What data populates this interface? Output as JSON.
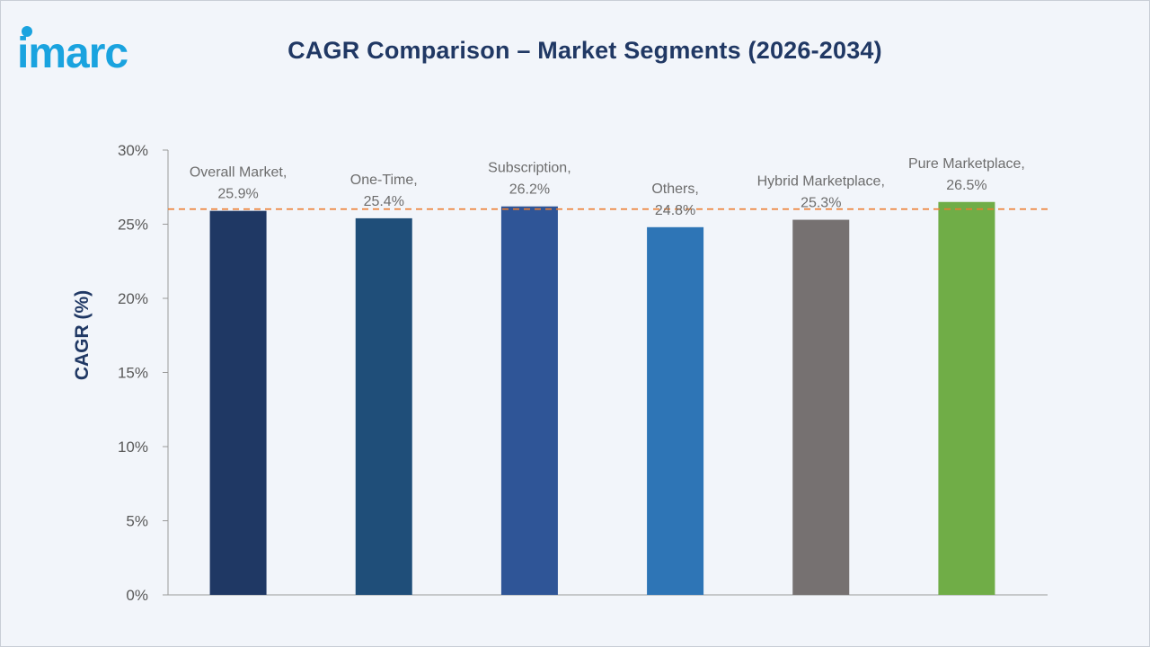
{
  "brand": {
    "name": "imarc",
    "color": "#1aa3df"
  },
  "title": "CAGR Comparison – Market Segments (2026-2034)",
  "chart_data": {
    "type": "bar",
    "title": "CAGR Comparison – Market Segments (2026-2034)",
    "xlabel": "",
    "ylabel": "CAGR (%)",
    "ylim": [
      0,
      30
    ],
    "yticks": [
      0,
      5,
      10,
      15,
      20,
      25,
      30
    ],
    "ytick_labels": [
      "0%",
      "5%",
      "10%",
      "15%",
      "20%",
      "25%",
      "30%"
    ],
    "categories": [
      "Overall Market",
      "One-Time",
      "Subscription",
      "Others",
      "Hybrid Marketplace",
      "Pure Marketplace"
    ],
    "values": [
      25.9,
      25.4,
      26.2,
      24.8,
      25.3,
      26.5
    ],
    "data_labels": [
      "25.9%",
      "25.4%",
      "26.2%",
      "24.8%",
      "25.3%",
      "26.5%"
    ],
    "colors": [
      "#1f3864",
      "#1f4e79",
      "#2f5597",
      "#2e75b6",
      "#767171",
      "#70ad47"
    ],
    "reference_line": {
      "value": 25.9,
      "style": "dashed",
      "color": "#ed7d31"
    },
    "grid": false,
    "legend": "none"
  }
}
